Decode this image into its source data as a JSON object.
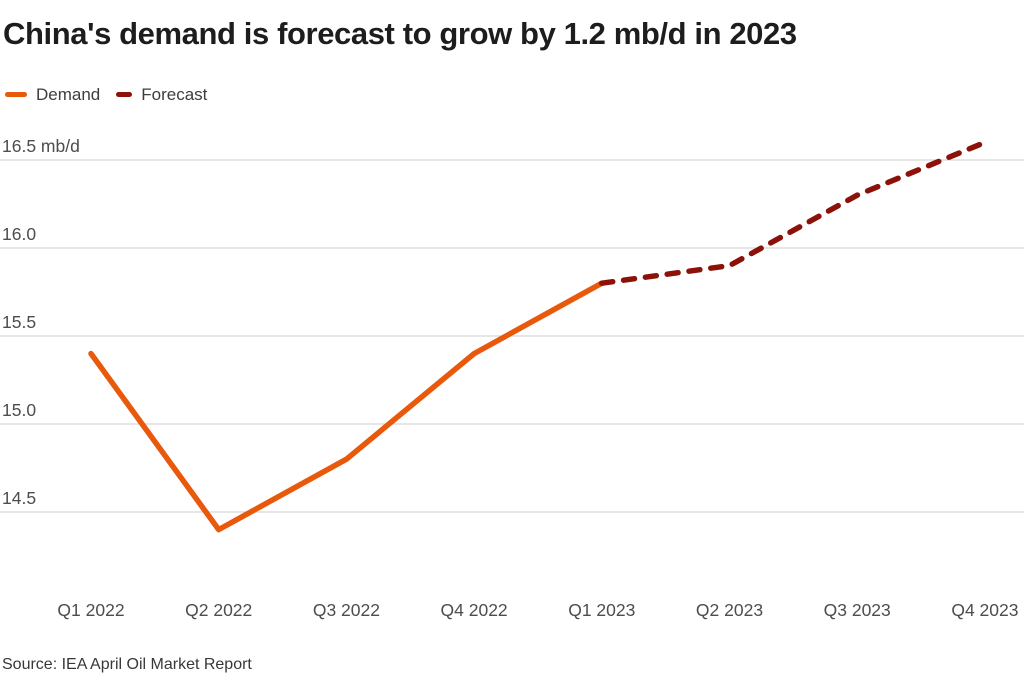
{
  "title": "China's demand is forecast to grow by 1.2 mb/d in 2023",
  "legend": {
    "items": [
      {
        "label": "Demand",
        "color": "#E8590C",
        "style": "solid"
      },
      {
        "label": "Forecast",
        "color": "#8B1109",
        "style": "dashed"
      }
    ]
  },
  "source": "Source: IEA April Oil Market Report",
  "colors": {
    "demand_line": "#E8590C",
    "forecast_line": "#8B1109",
    "gridline": "#D6D6D6",
    "axis_text": "#4D4D4D",
    "title_text": "#1D1D1D",
    "background": "#FFFFFF"
  },
  "chart_data": {
    "type": "line",
    "title": "China's demand is forecast to grow by 1.2 mb/d in 2023",
    "categories": [
      "Q1 2022",
      "Q2 2022",
      "Q3 2022",
      "Q4 2022",
      "Q1 2023",
      "Q2 2023",
      "Q3 2023",
      "Q4 2023"
    ],
    "series": [
      {
        "name": "Demand",
        "style": "solid",
        "color": "#E8590C",
        "values": [
          15.4,
          14.4,
          14.8,
          15.4,
          15.8,
          null,
          null,
          null
        ]
      },
      {
        "name": "Forecast",
        "style": "dashed",
        "color": "#8B1109",
        "values": [
          null,
          null,
          null,
          null,
          15.8,
          15.9,
          16.3,
          16.6
        ]
      }
    ],
    "unit": "mb/d",
    "xlabel": "",
    "ylabel": "",
    "yticks": [
      14.5,
      15.0,
      15.5,
      16.0,
      16.5
    ],
    "ytick_labels": [
      "14.5",
      "15.0",
      "15.5",
      "16.0",
      "16.5 mb/d"
    ],
    "ylim": [
      14.3,
      16.7
    ],
    "grid": "horizontal-only",
    "legend_position": "top-left",
    "source": "Source: IEA April Oil Market Report"
  }
}
